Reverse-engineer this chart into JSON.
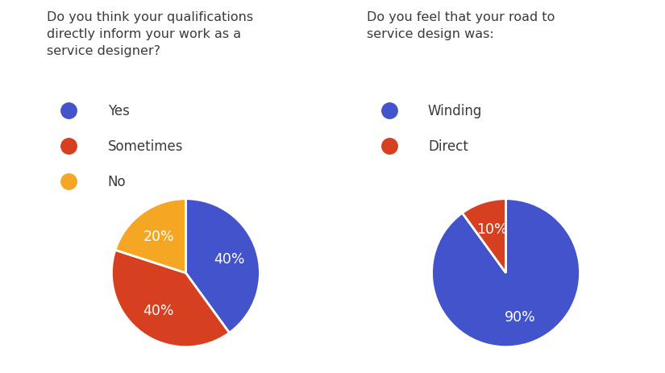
{
  "chart1": {
    "title": "Do you think your qualifications\ndirectly inform your work as a\nservice designer?",
    "labels": [
      "Yes",
      "Sometimes",
      "No"
    ],
    "values": [
      40,
      40,
      20
    ],
    "colors": [
      "#4353cc",
      "#d63f1f",
      "#f5a623"
    ],
    "legend_labels": [
      "Yes",
      "Sometimes",
      "No"
    ]
  },
  "chart2": {
    "title": "Do you feel that your road to\nservice design was:",
    "labels": [
      "Winding",
      "Direct"
    ],
    "values": [
      90,
      10
    ],
    "colors": [
      "#4353cc",
      "#d63f1f"
    ],
    "legend_labels": [
      "Winding",
      "Direct"
    ]
  },
  "background_color": "#ffffff",
  "text_color": "#3a3a3a",
  "title_fontsize": 11.5,
  "legend_fontsize": 12,
  "pct_fontsize": 12.5
}
